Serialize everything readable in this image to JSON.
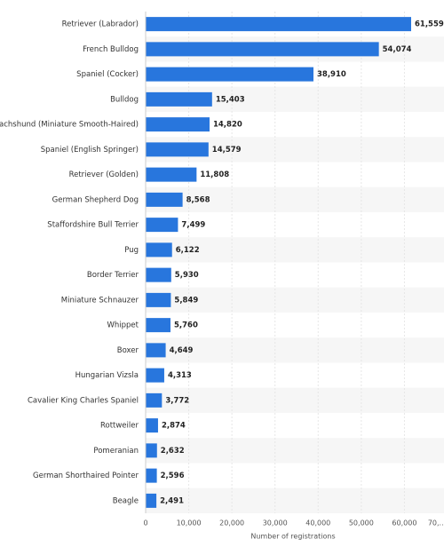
{
  "chart_data": {
    "type": "bar",
    "orientation": "horizontal",
    "x_label": "Number of registrations",
    "categories": [
      "Retriever (Labrador)",
      "French Bulldog",
      "Spaniel (Cocker)",
      "Bulldog",
      "Dachshund (Miniature Smooth-Haired)",
      "Spaniel (English Springer)",
      "Retriever (Golden)",
      "German Shepherd Dog",
      "Staffordshire Bull Terrier",
      "Pug",
      "Border Terrier",
      "Miniature Schnauzer",
      "Whippet",
      "Boxer",
      "Hungarian Vizsla",
      "Cavalier King Charles Spaniel",
      "Rottweiler",
      "Pomeranian",
      "German Shorthaired Pointer",
      "Beagle"
    ],
    "values": [
      61559,
      54074,
      38910,
      15403,
      14820,
      14579,
      11808,
      8568,
      7499,
      6122,
      5930,
      5849,
      5760,
      4649,
      4313,
      3772,
      2874,
      2632,
      2596,
      2491
    ],
    "value_labels": [
      "61,559",
      "54,074",
      "38,910",
      "15,403",
      "14,820",
      "14,579",
      "11,808",
      "8,568",
      "7,499",
      "6,122",
      "5,930",
      "5,849",
      "5,760",
      "4,649",
      "4,313",
      "3,772",
      "2,874",
      "2,632",
      "2,596",
      "2,491"
    ],
    "color": "#2876dd",
    "xlim": [
      0,
      70000
    ],
    "xticks": [
      0,
      {
        "value": 10000,
        "label": "10,000"
      },
      {
        "value": 20000,
        "label": "20,000"
      },
      {
        "value": 30000,
        "label": "30,000"
      },
      {
        "value": 40000,
        "label": "40,000"
      },
      {
        "value": 50000,
        "label": "50,000"
      },
      {
        "value": 60000,
        "label": "60,000"
      },
      {
        "value": 70000,
        "label": "70,..."
      }
    ],
    "grid": true
  }
}
